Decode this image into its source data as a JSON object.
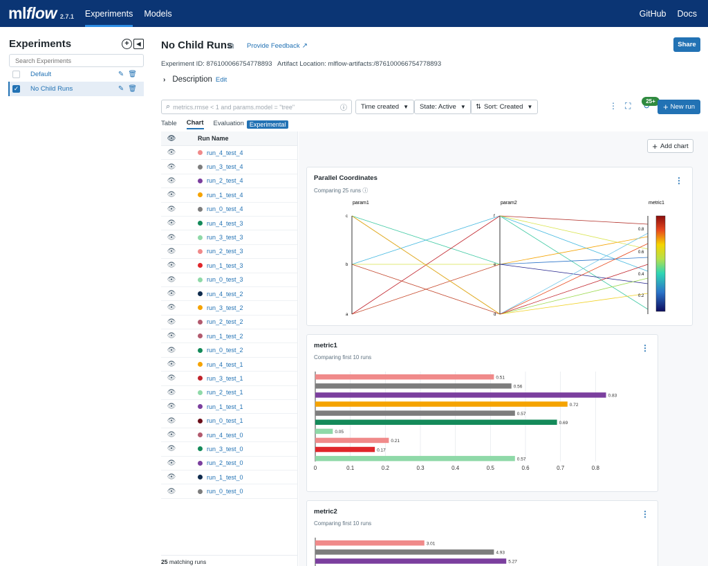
{
  "nav": {
    "logo_ml": "ml",
    "logo_flow": "flow",
    "version": "2.7.1",
    "items": [
      {
        "label": "Experiments"
      },
      {
        "label": "Models"
      }
    ],
    "right": [
      {
        "label": "GitHub"
      },
      {
        "label": "Docs"
      }
    ]
  },
  "sidebar": {
    "title": "Experiments",
    "search_placeholder": "Search Experiments",
    "experiments": [
      {
        "name": "Default",
        "checked": false
      },
      {
        "name": "No Child Runs",
        "checked": true
      }
    ]
  },
  "header": {
    "title": "No Child Runs",
    "feedback": "Provide Feedback",
    "share": "Share",
    "experiment_id": "Experiment ID: 876100066754778893",
    "artifact_location": "Artifact Location: mlflow-artifacts:/876100066754778893",
    "description": "Description",
    "edit": "Edit"
  },
  "toolbar": {
    "search_placeholder": "metrics.rmse < 1 and params.model = \"tree\"",
    "time_created": "Time created",
    "state": "State: Active",
    "sort": "Sort: Created",
    "badge": "25+",
    "new_run": "New run"
  },
  "tabs": [
    {
      "label": "Table"
    },
    {
      "label": "Chart"
    },
    {
      "label": "Evaluation"
    }
  ],
  "experimental_badge": "Experimental",
  "runs": {
    "header": "Run Name",
    "footer_count": "25",
    "footer_text": " matching runs",
    "items": [
      {
        "name": "run_4_test_4",
        "color": "#f08a8a"
      },
      {
        "name": "run_3_test_4",
        "color": "#7d7d7d"
      },
      {
        "name": "run_2_test_4",
        "color": "#7b3f9e"
      },
      {
        "name": "run_1_test_4",
        "color": "#f5a300"
      },
      {
        "name": "run_0_test_4",
        "color": "#7d7d7d"
      },
      {
        "name": "run_4_test_3",
        "color": "#148a5a"
      },
      {
        "name": "run_3_test_3",
        "color": "#8fd9a8"
      },
      {
        "name": "run_2_test_3",
        "color": "#f08a8a"
      },
      {
        "name": "run_1_test_3",
        "color": "#e0262b"
      },
      {
        "name": "run_0_test_3",
        "color": "#8fd9a8"
      },
      {
        "name": "run_4_test_2",
        "color": "#0f2b4d"
      },
      {
        "name": "run_3_test_2",
        "color": "#f5a300"
      },
      {
        "name": "run_2_test_2",
        "color": "#b25a6e"
      },
      {
        "name": "run_1_test_2",
        "color": "#b25a6e"
      },
      {
        "name": "run_0_test_2",
        "color": "#148a5a"
      },
      {
        "name": "run_4_test_1",
        "color": "#f5a300"
      },
      {
        "name": "run_3_test_1",
        "color": "#c0232b"
      },
      {
        "name": "run_2_test_1",
        "color": "#8fd9a8"
      },
      {
        "name": "run_1_test_1",
        "color": "#7b3f9e"
      },
      {
        "name": "run_0_test_1",
        "color": "#6b0f1a"
      },
      {
        "name": "run_4_test_0",
        "color": "#b25a6e"
      },
      {
        "name": "run_3_test_0",
        "color": "#148a5a"
      },
      {
        "name": "run_2_test_0",
        "color": "#7b3f9e"
      },
      {
        "name": "run_1_test_0",
        "color": "#0f2b4d"
      },
      {
        "name": "run_0_test_0",
        "color": "#7d7d7d"
      }
    ]
  },
  "charts": {
    "add_chart": "Add chart",
    "parallel": {
      "title": "Parallel Coordinates",
      "subtitle": "Comparing 25 runs",
      "axes": [
        "param1",
        "param2",
        "metric1"
      ],
      "param1_ticks": [
        "c",
        "b",
        "a"
      ],
      "param2_ticks": [
        "f",
        "e",
        "d"
      ],
      "colorbar_ticks": [
        "0.8",
        "0.6",
        "0.4",
        "0.2"
      ]
    },
    "metric1": {
      "title": "metric1",
      "subtitle": "Comparing first 10 runs"
    },
    "metric2": {
      "title": "metric2",
      "subtitle": "Comparing first 10 runs"
    }
  },
  "chart_data": [
    {
      "type": "bar",
      "title": "metric1",
      "orientation": "horizontal",
      "categories": [
        "run_4_test_4",
        "run_3_test_4",
        "run_2_test_4",
        "run_1_test_4",
        "run_0_test_4",
        "run_4_test_3",
        "run_3_test_3",
        "run_2_test_3",
        "run_1_test_3",
        "run_0_test_3"
      ],
      "values": [
        0.51,
        0.56,
        0.83,
        0.72,
        0.57,
        0.69,
        0.05,
        0.21,
        0.17,
        0.57
      ],
      "value_labels": [
        "0.51",
        "0.56",
        "0.83",
        "0.72",
        "0.57",
        "0.69",
        "0.05",
        "0.21",
        "0.17",
        "0.57"
      ],
      "colors": [
        "#f08a8a",
        "#7d7d7d",
        "#7b3f9e",
        "#f5a300",
        "#7d7d7d",
        "#148a5a",
        "#8fd9a8",
        "#f08a8a",
        "#e0262b",
        "#8fd9a8"
      ],
      "xlim": [
        0,
        0.9
      ],
      "xticks": [
        "0",
        "0.1",
        "0.2",
        "0.3",
        "0.4",
        "0.5",
        "0.6",
        "0.7",
        "0.8"
      ]
    },
    {
      "type": "bar",
      "title": "metric2",
      "orientation": "horizontal",
      "categories": [
        "run_4_test_4",
        "run_3_test_4",
        "run_2_test_4"
      ],
      "values": [
        3.01,
        4.93,
        5.27
      ],
      "value_labels": [
        "3.01",
        "4.93",
        "5.27"
      ],
      "colors": [
        "#f08a8a",
        "#7d7d7d",
        "#7b3f9e"
      ],
      "xlim": [
        0,
        8.7
      ]
    }
  ]
}
